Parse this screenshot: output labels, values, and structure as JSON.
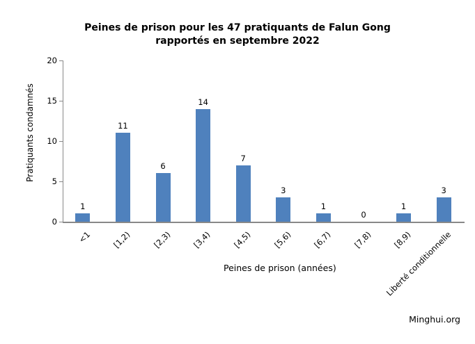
{
  "page": {
    "background_color": "#ffffff"
  },
  "chart_data": {
    "type": "bar",
    "title": "Peines de prison pour les 47 pratiquants de Falun Gong rapportés en septembre 2022",
    "title_lines": [
      "Peines de prison pour les 47 pratiquants de Falun Gong",
      "rapportés en septembre 2022"
    ],
    "categories": [
      "<1",
      "[1,2)",
      "[2,3)",
      "[3,4)",
      "[4,5)",
      "[5,6)",
      "[6,7)",
      "[7,8)",
      "[8,9)",
      "Liberté conditionnelle"
    ],
    "values": [
      1,
      11,
      6,
      14,
      7,
      3,
      1,
      0,
      1,
      3
    ],
    "xlabel": "Peines de prison (années)",
    "ylabel": "Pratiquants  condamnés",
    "ylim": [
      0,
      20
    ],
    "y_ticks": [
      0,
      5,
      10,
      15,
      20
    ],
    "bar_color": "#4F81BD",
    "axis_color": "#888888",
    "grid": false,
    "legend": "none",
    "data_labels": true,
    "source_label": "Minghui.org"
  }
}
